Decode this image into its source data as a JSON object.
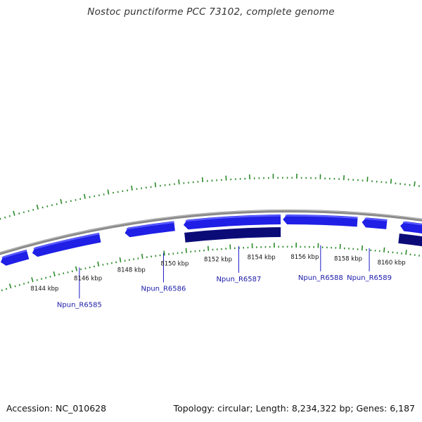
{
  "title": "Nostoc punctiforme PCC 73102, complete genome",
  "footer": {
    "accession": "Accession: NC_010628",
    "topology": "Topology: circular; Length: 8,234,322 bp; Genes: 6,187"
  },
  "colors": {
    "forward_gene": "#1f1fe6",
    "forward_gene_highlight": "#5b5bff",
    "reverse_gene": "#0b0b78",
    "backbone": "#8a8a8a",
    "tick_marks": "#2a8a2a",
    "label_line": "#1a1ac8",
    "label_text": "#1a1aa8"
  },
  "genome": {
    "length_bp": 8234322,
    "visible_range_kbp": [
      8142.5,
      8161.3
    ]
  },
  "scale_labels": [
    {
      "text": "8144 kbp",
      "kbp": 8144
    },
    {
      "text": "8146 kbp",
      "kbp": 8146
    },
    {
      "text": "8148 kbp",
      "kbp": 8148
    },
    {
      "text": "8150 kbp",
      "kbp": 8150
    },
    {
      "text": "8152 kbp",
      "kbp": 8152
    },
    {
      "text": "8154 kbp",
      "kbp": 8154
    },
    {
      "text": "8156 kbp",
      "kbp": 8156
    },
    {
      "text": "8158 kbp",
      "kbp": 8158
    },
    {
      "text": "8160 kbp",
      "kbp": 8160
    }
  ],
  "genes": [
    {
      "strand": "forward",
      "direction": "left",
      "start_kbp": 8142.5,
      "end_kbp": 8143.7
    },
    {
      "strand": "forward",
      "direction": "left",
      "start_kbp": 8143.9,
      "end_kbp": 8146.9
    },
    {
      "strand": "forward",
      "direction": "left",
      "start_kbp": 8148.0,
      "end_kbp": 8150.2
    },
    {
      "strand": "forward",
      "direction": "left",
      "start_kbp": 8150.6,
      "end_kbp": 8154.9
    },
    {
      "strand": "forward",
      "direction": "left",
      "start_kbp": 8155.0,
      "end_kbp": 8158.3
    },
    {
      "strand": "forward",
      "direction": "left",
      "start_kbp": 8158.5,
      "end_kbp": 8159.6
    },
    {
      "strand": "forward",
      "direction": "left",
      "start_kbp": 8160.2,
      "end_kbp": 8161.3
    },
    {
      "strand": "reverse",
      "direction": "right",
      "start_kbp": 8150.6,
      "end_kbp": 8154.9
    },
    {
      "strand": "reverse",
      "direction": "right",
      "start_kbp": 8160.2,
      "end_kbp": 8161.3
    }
  ],
  "gene_labels": [
    {
      "text": "Npun_R6585",
      "kbp": 8145.8
    },
    {
      "text": "Npun_R6586",
      "kbp": 8149.6
    },
    {
      "text": "Npun_R6587",
      "kbp": 8153.0
    },
    {
      "text": "Npun_R6588",
      "kbp": 8156.7
    },
    {
      "text": "Npun_R6589",
      "kbp": 8158.9
    }
  ]
}
